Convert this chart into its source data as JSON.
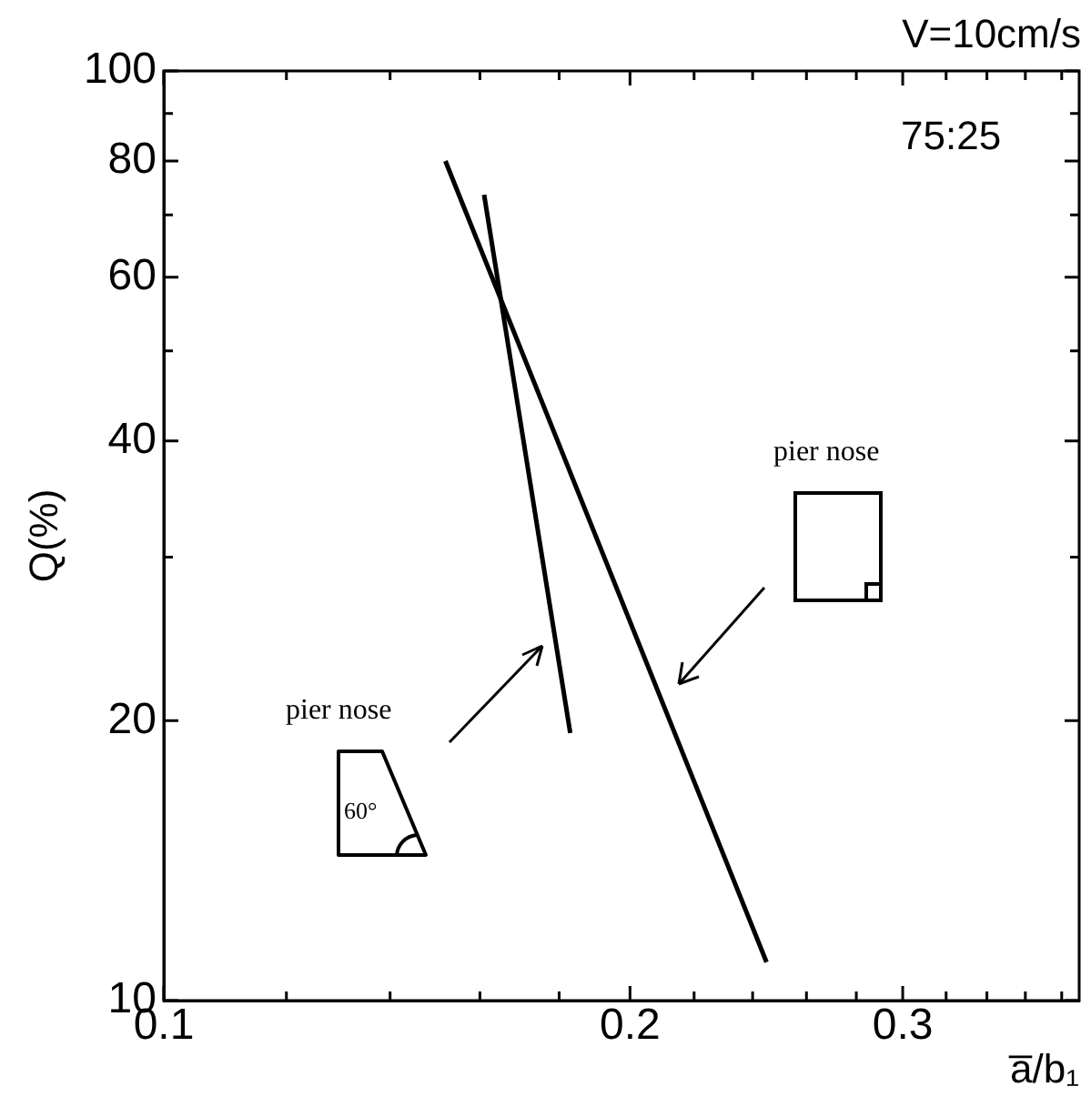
{
  "chart_data": {
    "type": "line",
    "xlabel": "a̅/b₁",
    "ylabel": "Q(%)",
    "log": "xy",
    "grid": false,
    "legend": false,
    "marker": "none",
    "line_style": "solid",
    "xlim": [
      0.1,
      0.39
    ],
    "ylim": [
      10,
      100
    ],
    "xticks": [
      0.1,
      {
        "value": 0.12,
        "label": null
      },
      {
        "value": 0.14,
        "label": null
      },
      {
        "value": 0.16,
        "label": null
      },
      {
        "value": 0.18,
        "label": null
      },
      0.2,
      {
        "value": 0.22,
        "label": null
      },
      {
        "value": 0.24,
        "label": null
      },
      {
        "value": 0.26,
        "label": null
      },
      {
        "value": 0.28,
        "label": null
      },
      0.3,
      {
        "value": 0.32,
        "label": null
      },
      {
        "value": 0.34,
        "label": null
      },
      {
        "value": 0.36,
        "label": null
      },
      {
        "value": 0.38,
        "label": null
      }
    ],
    "yticks": [
      10,
      20,
      {
        "value": 30,
        "label": null
      },
      40,
      {
        "value": 50,
        "label": null
      },
      60,
      {
        "value": 70,
        "label": null
      },
      80,
      {
        "value": 90,
        "label": null
      },
      100
    ],
    "series": [
      {
        "color": "#000000",
        "x": [
          0.152,
          0.245
        ],
        "values": [
          80,
          11
        ]
      },
      {
        "color": "#000000",
        "x": [
          0.161,
          0.183
        ],
        "values": [
          73.6,
          19.4
        ]
      }
    ],
    "annotations": [
      "V=10cm/s",
      "75:25",
      "pier nose",
      "pier nose",
      "60°"
    ]
  }
}
